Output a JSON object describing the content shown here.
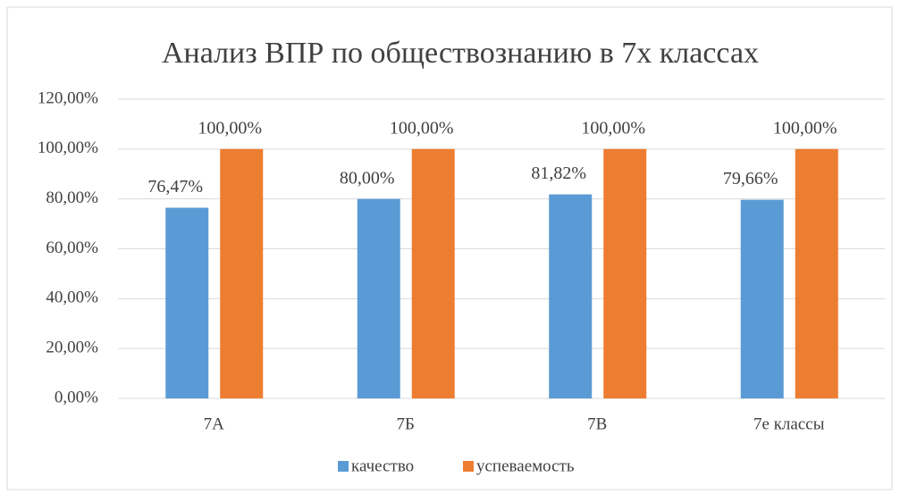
{
  "chart_data": {
    "type": "bar",
    "title": "Анализ ВПР по обществознанию в 7х классах",
    "categories": [
      "7А",
      "7Б",
      "7В",
      "7е классы"
    ],
    "series": [
      {
        "name": "качество",
        "color": "#5b9bd5",
        "values": [
          76.47,
          80,
          81.82,
          79.66
        ],
        "value_labels": [
          "76,47%",
          "80,00%",
          "81,82%",
          "79,66%"
        ]
      },
      {
        "name": "успеваемость",
        "color": "#ed7d31",
        "values": [
          100,
          100,
          100,
          100
        ],
        "value_labels": [
          "100,00%",
          "100,00%",
          "100,00%",
          "100,00%"
        ]
      }
    ],
    "ylim": [
      0,
      120
    ],
    "yticks": [
      {
        "value": 0,
        "label": "0,00%"
      },
      {
        "value": 20,
        "label": "20,00%"
      },
      {
        "value": 40,
        "label": "40,00%"
      },
      {
        "value": 60,
        "label": "60,00%"
      },
      {
        "value": 80,
        "label": "80,00%"
      },
      {
        "value": 100,
        "label": "100,00%"
      },
      {
        "value": 120,
        "label": "120,00%"
      }
    ],
    "grid": true,
    "legend": "bottom"
  }
}
